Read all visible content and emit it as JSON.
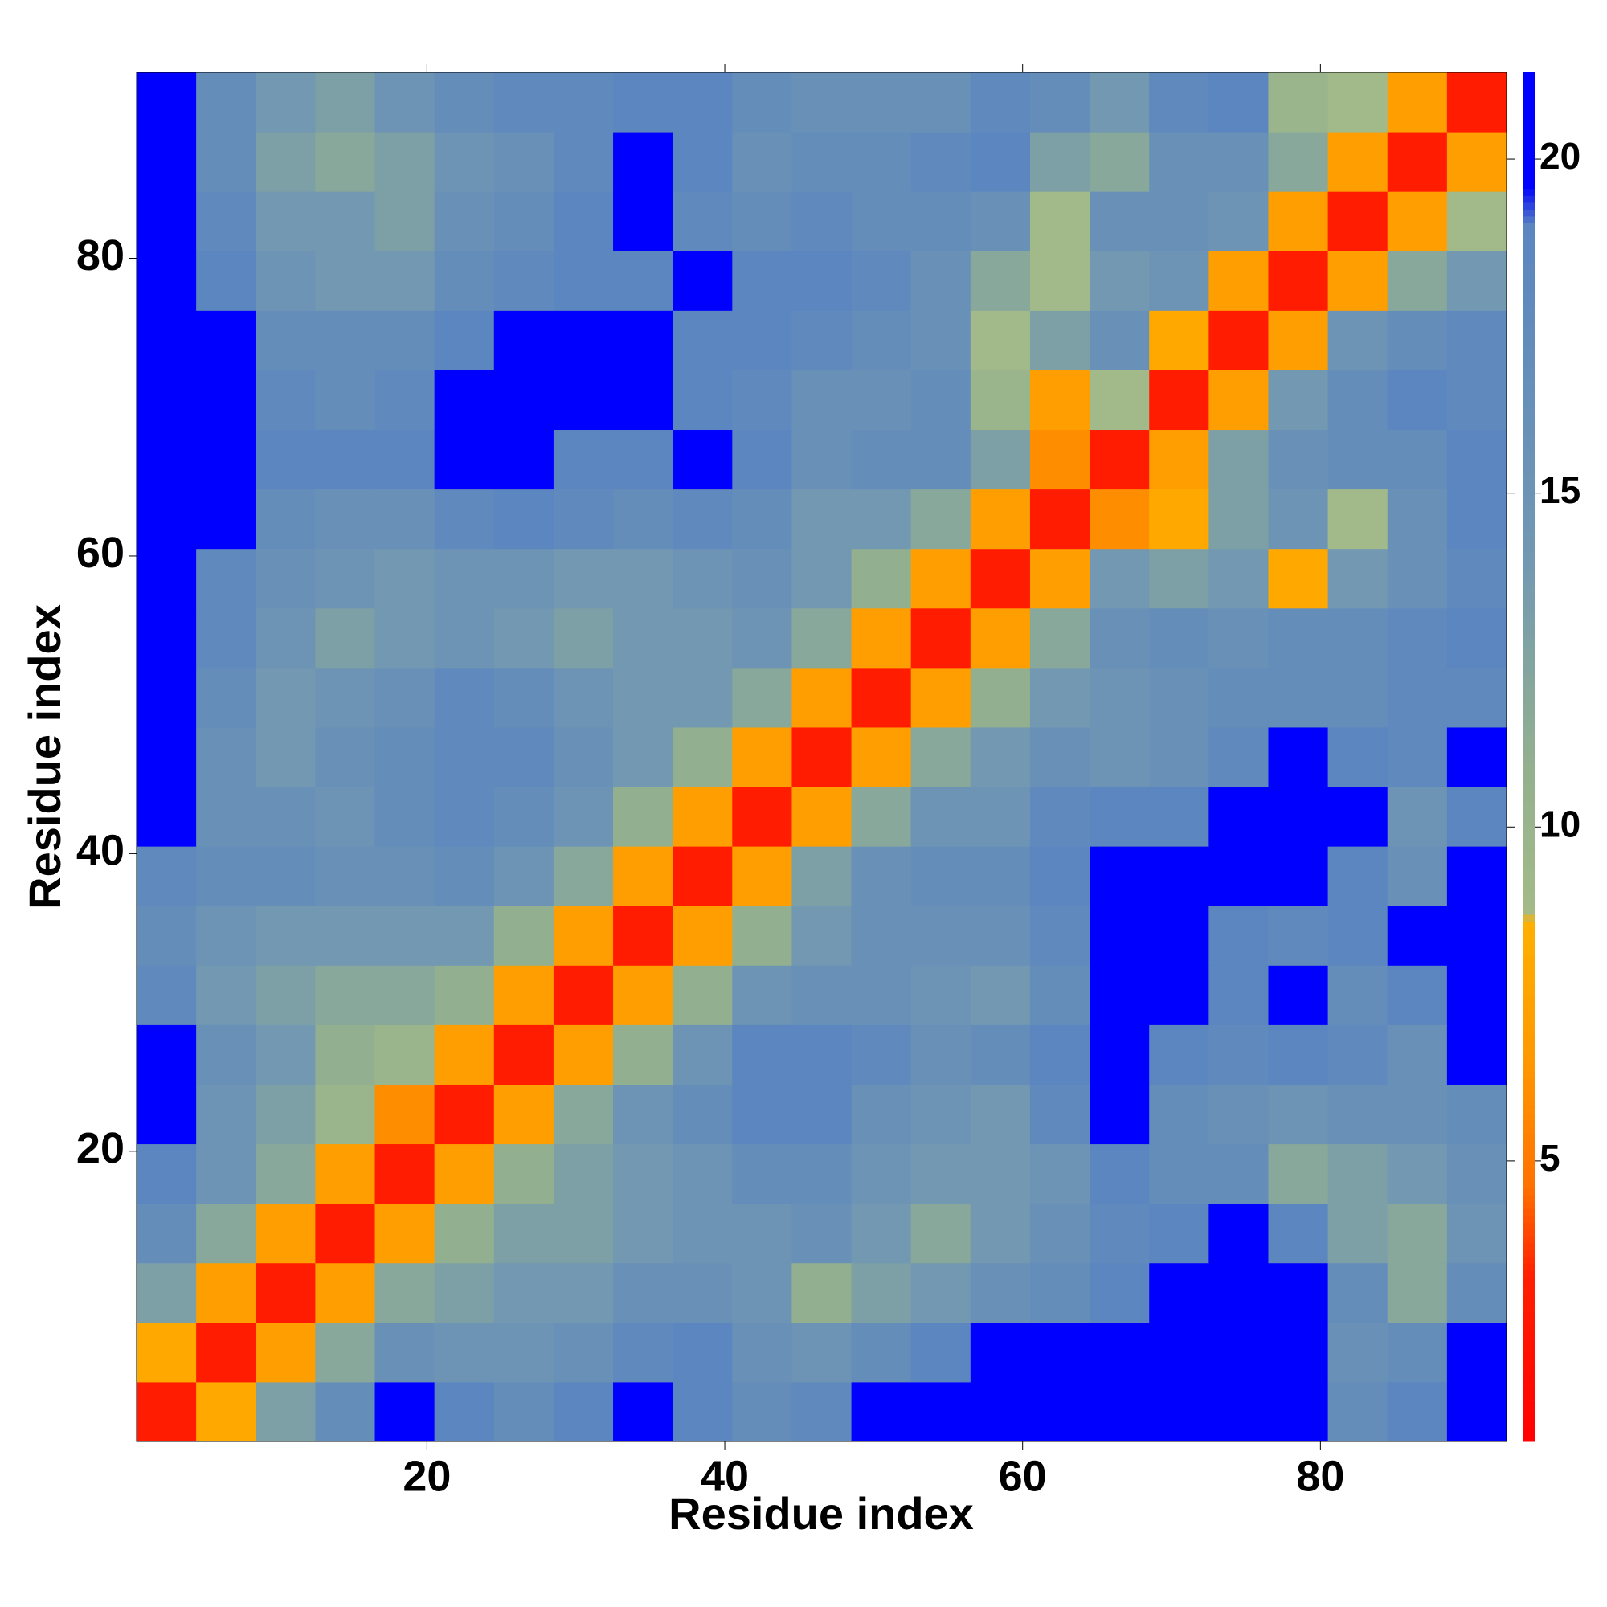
{
  "chart_data": {
    "type": "heatmap",
    "xlabel": "Residue index",
    "ylabel": "Residue index",
    "x": [
      2.5,
      6.5,
      10.5,
      14.5,
      18.5,
      22.5,
      26.5,
      30.5,
      34.5,
      38.5,
      42.5,
      46.5,
      50.5,
      54.5,
      58.5,
      62.5,
      66.5,
      70.5,
      74.5,
      78.5,
      82.5,
      86.5,
      90.5
    ],
    "y": [
      2.5,
      6.5,
      10.5,
      14.5,
      18.5,
      22.5,
      26.5,
      30.5,
      34.5,
      38.5,
      42.5,
      46.5,
      50.5,
      54.5,
      58.5,
      62.5,
      66.5,
      70.5,
      74.5,
      78.5,
      82.5,
      86.5,
      90.5
    ],
    "xlim": [
      0.5,
      92.5
    ],
    "ylim": [
      0.5,
      92.5
    ],
    "xticks": [
      20,
      40,
      60,
      80
    ],
    "yticks": [
      20,
      40,
      60,
      80
    ],
    "zlim": [
      0.8,
      21.3
    ],
    "zticks": [
      5,
      10,
      15,
      20
    ],
    "colormap": [
      [
        0.8,
        "#ff0000"
      ],
      [
        3.3,
        "#ff2000"
      ],
      [
        4.6,
        "#ff7000"
      ],
      [
        6.5,
        "#ff9800"
      ],
      [
        8.6,
        "#ffb000"
      ],
      [
        8.7,
        "#a4bb88"
      ],
      [
        11,
        "#92b08f"
      ],
      [
        14,
        "#7298b2"
      ],
      [
        19,
        "#5b86c0"
      ],
      [
        19.6,
        "#0000ff"
      ],
      [
        21.3,
        "#0000ff"
      ]
    ],
    "z": [
      [
        3,
        8,
        13,
        17,
        21,
        19,
        17,
        19,
        21,
        19,
        17,
        18,
        21,
        21,
        21,
        21,
        21,
        21,
        21,
        21,
        17,
        19,
        21
      ],
      [
        8,
        3,
        7,
        12,
        16,
        15,
        15,
        16,
        18,
        19,
        16,
        15,
        17,
        19,
        21,
        21,
        21,
        21,
        21,
        21,
        16,
        17,
        21
      ],
      [
        13,
        7,
        3,
        7,
        12,
        13,
        14,
        14,
        16,
        16,
        15,
        11,
        13,
        14,
        16,
        17,
        19,
        21,
        21,
        21,
        17,
        12,
        17
      ],
      [
        17,
        12,
        7,
        3,
        7,
        11,
        13,
        13,
        14,
        15,
        15,
        16,
        14,
        12,
        14,
        16,
        18,
        19,
        20,
        19,
        13,
        12,
        15
      ],
      [
        19,
        15,
        12,
        7,
        3,
        7,
        11,
        13,
        14,
        15,
        17,
        17,
        15,
        14,
        14,
        15,
        19,
        17,
        17,
        12,
        13,
        14,
        16
      ],
      [
        21,
        15,
        13,
        10,
        6,
        3,
        7,
        12,
        15,
        17,
        19,
        19,
        16,
        15,
        14,
        18,
        21,
        17,
        16,
        15,
        16,
        16,
        17
      ],
      [
        21,
        16,
        14,
        11,
        10,
        7,
        3,
        7,
        11,
        15,
        19,
        19,
        18,
        16,
        17,
        19,
        21,
        19,
        18,
        19,
        18,
        16,
        20
      ],
      [
        18,
        14,
        13,
        12,
        12,
        11,
        7,
        3,
        7,
        11,
        15,
        16,
        16,
        15,
        14,
        17,
        21,
        20,
        19,
        20,
        17,
        19,
        21
      ],
      [
        17,
        15,
        14,
        14,
        14,
        14,
        11,
        7,
        3,
        7,
        11,
        14,
        16,
        16,
        16,
        18,
        21,
        21,
        19,
        18,
        19,
        20,
        21
      ],
      [
        18,
        17,
        17,
        16,
        16,
        17,
        15,
        12,
        7,
        3,
        7,
        13,
        16,
        17,
        17,
        19,
        21,
        20,
        21,
        21,
        19,
        16,
        21
      ],
      [
        20,
        16,
        16,
        15,
        17,
        18,
        17,
        15,
        11,
        7,
        3,
        7,
        12,
        15,
        15,
        18,
        19,
        19,
        20,
        21,
        20,
        15,
        19
      ],
      [
        21,
        16,
        14,
        16,
        17,
        18,
        18,
        16,
        14,
        11,
        7,
        3,
        7,
        12,
        14,
        16,
        15,
        16,
        18,
        21,
        19,
        18,
        20
      ],
      [
        21,
        17,
        14,
        15,
        16,
        18,
        17,
        15,
        14,
        14,
        12,
        7,
        3,
        7,
        11,
        14,
        15,
        16,
        17,
        17,
        17,
        18,
        18
      ],
      [
        21,
        18,
        15,
        13,
        14,
        15,
        14,
        13,
        14,
        14,
        15,
        12,
        7,
        3,
        7,
        12,
        16,
        17,
        16,
        17,
        17,
        18,
        19
      ],
      [
        21,
        18,
        16,
        15,
        14,
        15,
        15,
        14,
        14,
        15,
        16,
        14,
        11,
        7,
        3,
        7,
        14,
        13,
        14,
        8,
        14,
        16,
        18
      ],
      [
        21,
        20,
        17,
        16,
        16,
        18,
        19,
        18,
        17,
        18,
        17,
        14,
        14,
        12,
        7,
        3,
        6,
        8,
        13,
        15,
        9,
        16,
        19
      ],
      [
        21,
        20,
        19,
        19,
        19,
        21,
        21,
        19,
        19,
        20,
        19,
        16,
        17,
        17,
        13,
        6,
        3,
        7,
        13,
        16,
        17,
        17,
        19
      ],
      [
        21,
        20,
        18,
        17,
        18,
        20,
        21,
        20,
        20,
        19,
        18,
        16,
        16,
        17,
        10,
        7,
        9,
        3,
        7,
        14,
        17,
        19,
        18
      ],
      [
        21,
        20,
        17,
        17,
        17,
        19,
        20,
        20,
        20,
        19,
        19,
        18,
        17,
        16,
        9,
        13,
        16,
        8,
        3,
        7,
        15,
        17,
        18
      ],
      [
        21,
        19,
        15,
        14,
        14,
        17,
        18,
        19,
        19,
        20,
        19,
        19,
        18,
        16,
        12,
        9,
        14,
        15,
        7,
        3,
        7,
        12,
        14
      ],
      [
        21,
        18,
        14,
        14,
        13,
        16,
        17,
        19,
        21,
        18,
        17,
        18,
        17,
        17,
        16,
        9,
        16,
        16,
        15,
        7,
        3,
        7,
        9
      ],
      [
        21,
        17,
        13,
        12,
        13,
        15,
        16,
        18,
        20,
        19,
        16,
        17,
        17,
        18,
        19,
        13,
        12,
        16,
        16,
        12,
        7,
        3,
        7
      ],
      [
        21,
        17,
        14,
        13,
        15,
        17,
        18,
        18,
        19,
        19,
        17,
        16,
        16,
        16,
        18,
        17,
        14,
        18,
        19,
        10,
        9,
        7,
        3
      ]
    ]
  }
}
